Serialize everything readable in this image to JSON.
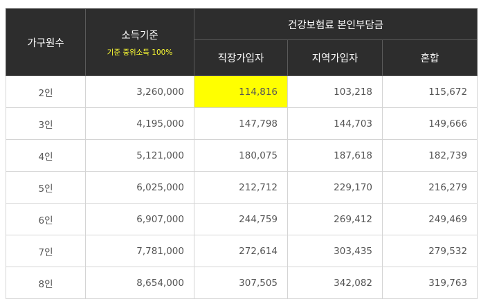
{
  "header": {
    "household_size": "가구원수",
    "income_standard": "소득기준",
    "income_note": "기준 중위소득 100%",
    "premium_group": "건강보험료 본인부담금",
    "employee": "직장가입자",
    "regional": "지역가입자",
    "mixed": "혼합"
  },
  "highlight_color": "#ffff00",
  "rows": [
    {
      "size": "2인",
      "income": "3,260,000",
      "employee": "114,816",
      "regional": "103,218",
      "mixed": "115,672"
    },
    {
      "size": "3인",
      "income": "4,195,000",
      "employee": "147,798",
      "regional": "144,703",
      "mixed": "149,666"
    },
    {
      "size": "4인",
      "income": "5,121,000",
      "employee": "180,075",
      "regional": "187,618",
      "mixed": "182,739"
    },
    {
      "size": "5인",
      "income": "6,025,000",
      "employee": "212,712",
      "regional": "229,170",
      "mixed": "216,279"
    },
    {
      "size": "6인",
      "income": "6,907,000",
      "employee": "244,759",
      "regional": "269,412",
      "mixed": "249,469"
    },
    {
      "size": "7인",
      "income": "7,781,000",
      "employee": "272,614",
      "regional": "303,435",
      "mixed": "279,532"
    },
    {
      "size": "8인",
      "income": "8,654,000",
      "employee": "307,505",
      "regional": "342,082",
      "mixed": "319,763"
    }
  ]
}
